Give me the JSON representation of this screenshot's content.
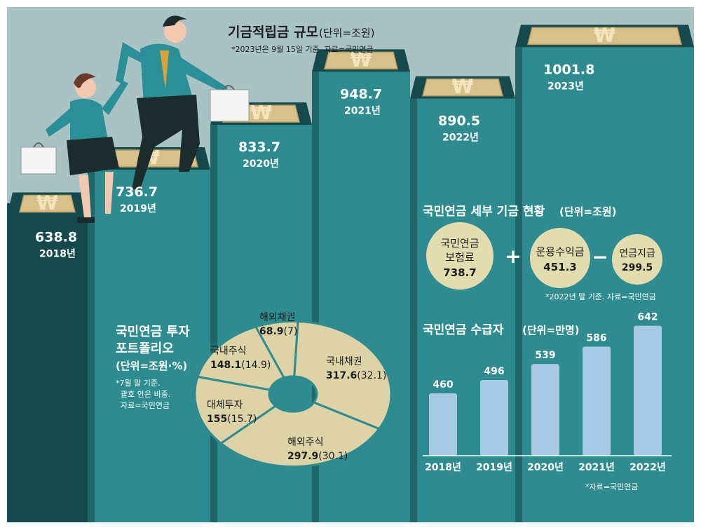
{
  "colors": {
    "sky": "#a9c3c5",
    "teal": "#2e8c91",
    "teal_dark": "#1e6e72",
    "stair_dark": "#16494c",
    "tile": "#d8c08a",
    "tile_inner": "#e6d3a3",
    "circle": "#e2dcae",
    "pie": "#ddd3a6",
    "bar": "#a8c9e3",
    "text_dark": "#1c1c1c"
  },
  "header": {
    "title": "기금적립금 규모",
    "unit": "(단위=조원)",
    "note": "*2023년은 9월 15일 기준. 자료=국민연금"
  },
  "icons": {
    "tile_symbol": "won-sign-icon"
  },
  "chart_data": [
    {
      "type": "bar",
      "title": "기금적립금 규모",
      "unit": "조원",
      "categories": [
        "2018년",
        "2019년",
        "2020년",
        "2021년",
        "2022년",
        "2023년"
      ],
      "values": [
        638.8,
        736.7,
        833.7,
        948.7,
        890.5,
        1001.8
      ],
      "value_labels": [
        "638.8",
        "736.7",
        "833.7",
        "948.7",
        "890.5",
        "1001.8"
      ]
    },
    {
      "type": "pie",
      "title": "국민연금 투자 포트폴리오",
      "unit": "(단위=조원·%)",
      "slices": [
        {
          "label": "국내채권",
          "value": 317.6,
          "share": 32.1,
          "value_text": "317.6",
          "share_text": "(32.1)"
        },
        {
          "label": "해외주식",
          "value": 297.9,
          "share": 30.1,
          "value_text": "297.9",
          "share_text": "(30.1)"
        },
        {
          "label": "대체투자",
          "value": 155,
          "share": 15.7,
          "value_text": "155",
          "share_text": "(15.7)"
        },
        {
          "label": "국내주식",
          "value": 148.1,
          "share": 14.9,
          "value_text": "148.1",
          "share_text": "(14.9)"
        },
        {
          "label": "해외채권",
          "value": 68.9,
          "share": 7,
          "value_text": "68.9",
          "share_text": "(7)"
        }
      ]
    },
    {
      "type": "bar",
      "title": "국민연금 수급자",
      "unit": "(단위=만명)",
      "categories": [
        "2018년",
        "2019년",
        "2020년",
        "2021년",
        "2022년"
      ],
      "values": [
        460,
        496,
        539,
        586,
        642
      ],
      "value_labels": [
        "460",
        "496",
        "539",
        "586",
        "642"
      ]
    }
  ],
  "pie_panel": {
    "title_line1": "국민연금 투자",
    "title_line2": "포트폴리오",
    "unit": "(단위=조원·%)",
    "note_line1": "*7월 말 기준.",
    "note_line2": "괄호 안은 비중.",
    "note_line3": "자료=국민연금"
  },
  "fund_detail": {
    "title": "국민연금 세부 기금 현황",
    "unit": "(단위=조원)",
    "items": [
      {
        "line1": "국민연금",
        "line2": "보험료",
        "value": "738.7"
      },
      {
        "line1": "운용수익금",
        "line2": "",
        "value": "451.3"
      },
      {
        "line1": "연금지급",
        "line2": "",
        "value": "299.5"
      }
    ],
    "op_plus": "+",
    "op_minus": "−",
    "note": "*2022년 말 기준. 자료=국민연금"
  },
  "recipients": {
    "title": "국민연금 수급자",
    "unit": "(단위=만명)",
    "note": "*자료=국민연금"
  }
}
